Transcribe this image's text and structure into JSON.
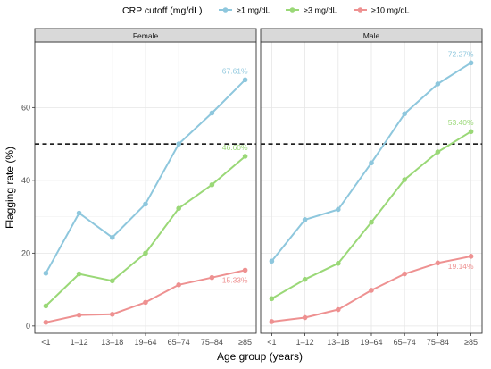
{
  "chart_data": {
    "type": "line",
    "xlabel": "Age group (years)",
    "ylabel": "Flagging rate (%)",
    "ylim": [
      -2,
      78
    ],
    "yticks": [
      0,
      20,
      40,
      60
    ],
    "categories": [
      "<1",
      "1–12",
      "13–18",
      "19–64",
      "65–74",
      "75–84",
      "≥85"
    ],
    "reference_line": {
      "y": 50,
      "style": "dashed"
    },
    "legend": {
      "title": "CRP cutoff (mg/dL)",
      "position": "top",
      "entries": [
        {
          "label": "≥1 mg/dL",
          "color": "#8ec7dd"
        },
        {
          "label": "≥3 mg/dL",
          "color": "#9ad877"
        },
        {
          "label": "≥10 mg/dL",
          "color": "#ee9191"
        }
      ]
    },
    "grid": true,
    "panels": [
      {
        "facet": "Female",
        "series": [
          {
            "name": "≥1 mg/dL",
            "color": "#8ec7dd",
            "values": [
              14.5,
              31.0,
              24.3,
              33.5,
              50.0,
              58.5,
              67.61
            ],
            "end_label": "67.61%"
          },
          {
            "name": "≥3 mg/dL",
            "color": "#9ad877",
            "values": [
              5.5,
              14.3,
              12.4,
              20.0,
              32.3,
              38.8,
              46.6
            ],
            "end_label": "46.60%"
          },
          {
            "name": "≥10 mg/dL",
            "color": "#ee9191",
            "values": [
              1.0,
              3.0,
              3.2,
              6.5,
              11.3,
              13.3,
              15.33
            ],
            "end_label": "15.33%"
          }
        ]
      },
      {
        "facet": "Male",
        "series": [
          {
            "name": "≥1 mg/dL",
            "color": "#8ec7dd",
            "values": [
              17.8,
              29.2,
              32.0,
              44.8,
              58.3,
              66.5,
              72.27
            ],
            "end_label": "72.27%"
          },
          {
            "name": "≥3 mg/dL",
            "color": "#9ad877",
            "values": [
              7.5,
              12.8,
              17.2,
              28.5,
              40.2,
              47.8,
              53.4
            ],
            "end_label": "53.40%"
          },
          {
            "name": "≥10 mg/dL",
            "color": "#ee9191",
            "values": [
              1.2,
              2.3,
              4.5,
              9.8,
              14.3,
              17.3,
              19.14
            ],
            "end_label": "19.14%"
          }
        ]
      }
    ]
  }
}
